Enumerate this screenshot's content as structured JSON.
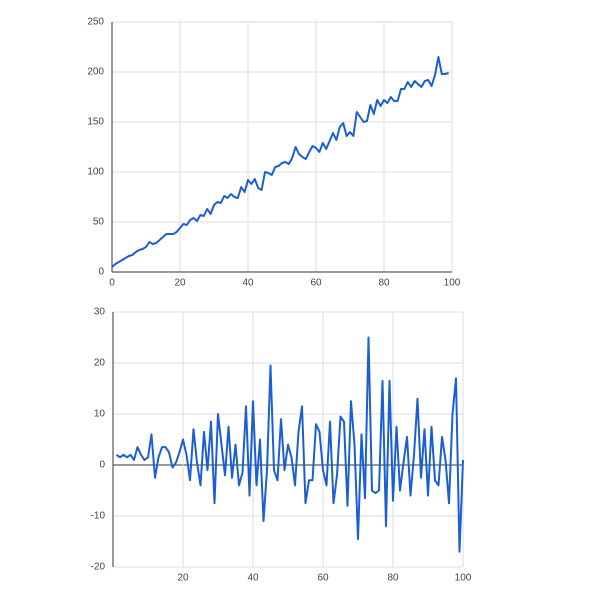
{
  "chart_data": [
    {
      "type": "line",
      "color": "#1c5fd1",
      "grid": true,
      "x": [
        0,
        1,
        2,
        3,
        4,
        5,
        6,
        7,
        8,
        9,
        10,
        11,
        12,
        13,
        14,
        15,
        16,
        17,
        18,
        19,
        20,
        21,
        22,
        23,
        24,
        25,
        26,
        27,
        28,
        29,
        30,
        31,
        32,
        33,
        34,
        35,
        36,
        37,
        38,
        39,
        40,
        41,
        42,
        43,
        44,
        45,
        46,
        47,
        48,
        49,
        50,
        51,
        52,
        53,
        54,
        55,
        56,
        57,
        58,
        59,
        60,
        61,
        62,
        63,
        64,
        65,
        66,
        67,
        68,
        69,
        70,
        71,
        72,
        73,
        74,
        75,
        76,
        77,
        78,
        79,
        80,
        81,
        82,
        83,
        84,
        85,
        86,
        87,
        88,
        89,
        90,
        91,
        92,
        93,
        94,
        95,
        96,
        97,
        98,
        99
      ],
      "values": [
        5,
        8,
        10,
        12,
        14,
        16,
        17,
        20,
        22,
        23,
        25,
        30,
        28,
        29,
        32,
        35,
        38,
        38,
        38,
        40,
        44,
        48,
        47,
        52,
        54,
        51,
        57,
        56,
        63,
        58,
        67,
        70,
        69,
        76,
        74,
        78,
        75,
        74,
        85,
        80,
        92,
        88,
        93,
        84,
        82,
        100,
        99,
        97,
        105,
        106,
        109,
        110,
        108,
        114,
        125,
        118,
        115,
        113,
        120,
        126,
        124,
        120,
        129,
        123,
        131,
        139,
        132,
        145,
        149,
        136,
        140,
        136,
        160,
        155,
        150,
        151,
        167,
        158,
        172,
        166,
        172,
        169,
        175,
        171,
        171,
        183,
        183,
        190,
        185,
        191,
        188,
        185,
        191,
        192,
        186,
        197,
        215,
        198,
        198,
        199
      ],
      "xlim": [
        0,
        100
      ],
      "xticks": [
        0,
        20,
        40,
        60,
        80,
        100
      ],
      "ylim": [
        0,
        250
      ],
      "yticks": [
        0,
        50,
        100,
        150,
        200,
        250
      ]
    },
    {
      "type": "line",
      "color": "#1c5fd1",
      "grid": true,
      "x": [
        1,
        2,
        3,
        4,
        5,
        6,
        7,
        8,
        9,
        10,
        11,
        12,
        13,
        14,
        15,
        16,
        17,
        18,
        19,
        20,
        21,
        22,
        23,
        24,
        25,
        26,
        27,
        28,
        29,
        30,
        31,
        32,
        33,
        34,
        35,
        36,
        37,
        38,
        39,
        40,
        41,
        42,
        43,
        44,
        45,
        46,
        47,
        48,
        49,
        50,
        51,
        52,
        53,
        54,
        55,
        56,
        57,
        58,
        59,
        60,
        61,
        62,
        63,
        64,
        65,
        66,
        67,
        68,
        69,
        70,
        71,
        72,
        73,
        74,
        75,
        76,
        77,
        78,
        79,
        80,
        81,
        82,
        83,
        84,
        85,
        86,
        87,
        88,
        89,
        90,
        91,
        92,
        93,
        94,
        95,
        96,
        97,
        98,
        99,
        100
      ],
      "values": [
        2,
        1.5,
        2,
        1.5,
        2,
        1,
        3.5,
        2,
        1,
        1.5,
        6,
        -2.5,
        1.5,
        3.5,
        3.5,
        2.5,
        -0.5,
        0.5,
        2.5,
        5,
        2,
        -3,
        7,
        0.5,
        -4,
        6.5,
        -1,
        8.5,
        -7.5,
        10,
        4,
        -2,
        7.5,
        -2.5,
        4,
        -4,
        -1.5,
        11.5,
        -6,
        12.5,
        -4,
        5,
        -11,
        -1,
        19.5,
        -1,
        -3,
        9,
        -1,
        4,
        1.5,
        -4,
        6.5,
        11.5,
        -7.5,
        -3,
        -3,
        8,
        6.5,
        -1,
        -4,
        8.5,
        -7.5,
        -2,
        9.5,
        8.5,
        -8,
        12.5,
        4,
        -14.5,
        6,
        -6.5,
        25,
        -5,
        -5.5,
        -5,
        16.5,
        -12,
        16.5,
        -7,
        7.5,
        -5,
        0.5,
        5.5,
        -6,
        2,
        13,
        -2.5,
        7,
        -6,
        7.5,
        -3,
        -4,
        5.5,
        1,
        -7.5,
        10,
        17,
        -17,
        1
      ],
      "xlim": [
        0,
        100
      ],
      "xticks": [
        20,
        40,
        60,
        80,
        100
      ],
      "ylim": [
        -20,
        30
      ],
      "yticks": [
        -20,
        -10,
        0,
        10,
        20,
        30
      ]
    }
  ]
}
